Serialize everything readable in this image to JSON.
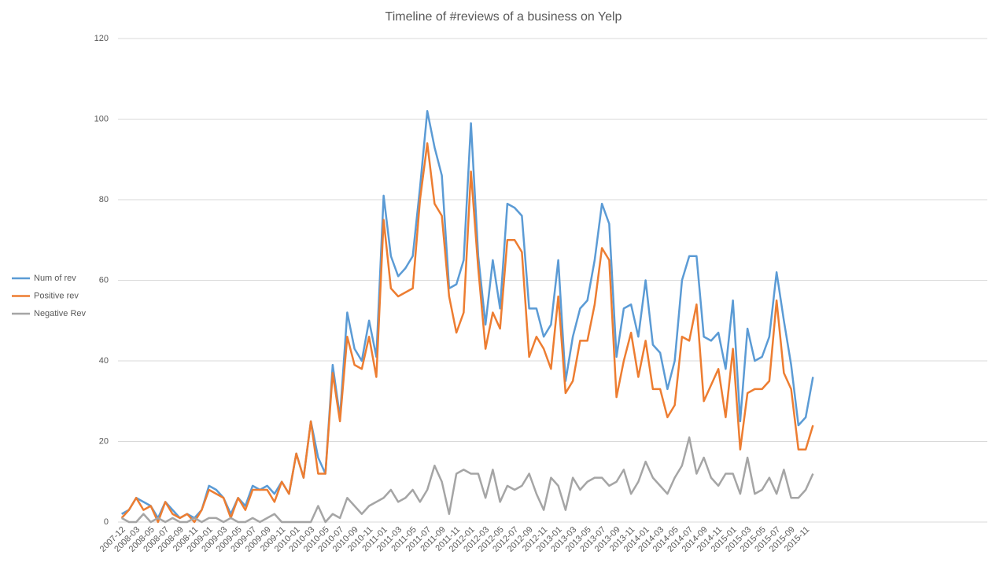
{
  "chart_data": {
    "type": "line",
    "title": "Timeline of #reviews of a business on Yelp",
    "categories": [
      "2007-12",
      null,
      "2008-03",
      null,
      "2008-05",
      null,
      "2008-07",
      null,
      "2008-09",
      null,
      "2008-11",
      null,
      "2009-01",
      null,
      "2009-03",
      null,
      "2009-05",
      null,
      "2009-07",
      null,
      "2009-09",
      null,
      "2009-11",
      null,
      "2010-01",
      null,
      "2010-03",
      null,
      "2010-05",
      null,
      "2010-07",
      null,
      "2010-09",
      null,
      "2010-11",
      null,
      "2011-01",
      null,
      "2011-03",
      null,
      "2011-05",
      null,
      "2011-07",
      null,
      "2011-09",
      null,
      "2011-11",
      null,
      "2012-01",
      null,
      "2012-03",
      null,
      "2012-05",
      null,
      "2012-07",
      null,
      "2012-09",
      null,
      "2012-11",
      null,
      "2013-01",
      null,
      "2013-03",
      null,
      "2013-05",
      null,
      "2013-07",
      null,
      "2013-09",
      null,
      "2013-11",
      null,
      "2014-01",
      null,
      "2014-03",
      null,
      "2014-05",
      null,
      "2014-07",
      null,
      "2014-09",
      null,
      "2014-11",
      null,
      "2015-01",
      null,
      "2015-03",
      null,
      "2015-05",
      null,
      "2015-07",
      null,
      "2015-09",
      null,
      "2015-11",
      null
    ],
    "series": [
      {
        "name": "Num of rev",
        "color": "#5b9bd5",
        "values": [
          2,
          3,
          6,
          5,
          4,
          1,
          5,
          3,
          1,
          2,
          1,
          3,
          9,
          8,
          6,
          2,
          6,
          4,
          9,
          8,
          9,
          7,
          10,
          7,
          17,
          11,
          25,
          16,
          12,
          39,
          26,
          52,
          43,
          40,
          50,
          41,
          81,
          66,
          61,
          63,
          66,
          83,
          102,
          93,
          86,
          58,
          59,
          65,
          99,
          66,
          49,
          65,
          53,
          79,
          78,
          76,
          53,
          53,
          46,
          49,
          65,
          35,
          46,
          53,
          55,
          65,
          79,
          74,
          41,
          53,
          54,
          46,
          60,
          44,
          42,
          33,
          40,
          60,
          66,
          66,
          46,
          45,
          47,
          38,
          55,
          25,
          48,
          40,
          41,
          46,
          62,
          50,
          39,
          24,
          26,
          36
        ]
      },
      {
        "name": "Positive rev",
        "color": "#ed7d31",
        "values": [
          1,
          3,
          6,
          3,
          4,
          0,
          5,
          2,
          1,
          2,
          0,
          3,
          8,
          7,
          6,
          1,
          6,
          3,
          8,
          8,
          8,
          5,
          10,
          7,
          17,
          11,
          25,
          12,
          12,
          37,
          25,
          46,
          39,
          38,
          46,
          36,
          75,
          58,
          56,
          57,
          58,
          80,
          94,
          79,
          76,
          56,
          47,
          52,
          87,
          63,
          43,
          52,
          48,
          70,
          70,
          67,
          41,
          46,
          43,
          38,
          56,
          32,
          35,
          45,
          45,
          54,
          68,
          65,
          31,
          40,
          47,
          36,
          45,
          33,
          33,
          26,
          29,
          46,
          45,
          54,
          30,
          34,
          38,
          26,
          43,
          18,
          32,
          33,
          33,
          35,
          55,
          37,
          33,
          18,
          18,
          24
        ]
      },
      {
        "name": "Negative Rev",
        "color": "#a5a5a5",
        "values": [
          1,
          0,
          0,
          2,
          0,
          1,
          0,
          1,
          0,
          0,
          1,
          0,
          1,
          1,
          0,
          1,
          0,
          0,
          1,
          0,
          1,
          2,
          0,
          0,
          0,
          0,
          0,
          4,
          0,
          2,
          1,
          6,
          4,
          2,
          4,
          5,
          6,
          8,
          5,
          6,
          8,
          5,
          8,
          14,
          10,
          2,
          12,
          13,
          12,
          12,
          6,
          13,
          5,
          9,
          8,
          9,
          12,
          7,
          3,
          11,
          9,
          3,
          11,
          8,
          10,
          11,
          11,
          9,
          10,
          13,
          7,
          10,
          15,
          11,
          9,
          7,
          11,
          14,
          21,
          12,
          16,
          11,
          9,
          12,
          12,
          7,
          16,
          7,
          8,
          11,
          7,
          13,
          6,
          6,
          8,
          12
        ]
      }
    ],
    "ylim": [
      0,
      120
    ],
    "yticks": [
      0,
      20,
      40,
      60,
      80,
      100,
      120
    ],
    "grid": true,
    "legend": "left"
  }
}
